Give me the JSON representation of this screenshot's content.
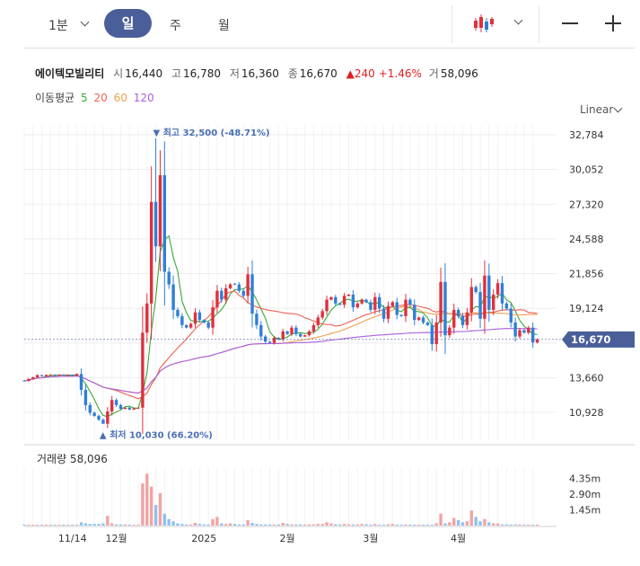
{
  "toolbar": {
    "period_dropdown": "1분",
    "tabs": [
      {
        "label": "일",
        "active": true
      },
      {
        "label": "주",
        "active": false
      },
      {
        "label": "월",
        "active": false
      }
    ],
    "chart_type_icon": "candlestick-icon",
    "zoom_out_icon": "minus-icon",
    "zoom_in_icon": "plus-icon",
    "accent_color": "#4a5e9a"
  },
  "quote": {
    "name": "에이텍모빌리티",
    "open_label": "시",
    "open": "16,440",
    "high_label": "고",
    "high": "16,780",
    "low_label": "저",
    "low": "16,360",
    "close_label": "종",
    "close": "16,670",
    "change": "▲240",
    "change_pct": "+1.46%",
    "volume_label": "거",
    "volume": "58,096"
  },
  "moving_average": {
    "label": "이동평균",
    "periods": [
      {
        "period": "5",
        "color": "#3aaa35"
      },
      {
        "period": "20",
        "color": "#f06050"
      },
      {
        "period": "60",
        "color": "#f0a050"
      },
      {
        "period": "120",
        "color": "#a860e0"
      }
    ]
  },
  "scale_label": "Linear",
  "chart_data": {
    "type": "candlestick",
    "colors": {
      "up": "#e0303c",
      "down": "#2f7fd8"
    },
    "y_ticks": [
      32784,
      30052,
      27320,
      24588,
      21856,
      19124,
      16392,
      13660,
      10928
    ],
    "y_tick_labels": [
      "32,784",
      "30,052",
      "27,320",
      "24,588",
      "21,856",
      "19,124",
      "",
      "13,660",
      "10,928"
    ],
    "ylim": [
      9200,
      34100
    ],
    "x_labels": [
      {
        "label": "11/14",
        "index": 11
      },
      {
        "label": "12월",
        "index": 21
      },
      {
        "label": "2025",
        "index": 41
      },
      {
        "label": "2월",
        "index": 60
      },
      {
        "label": "3월",
        "index": 79
      },
      {
        "label": "4월",
        "index": 99
      }
    ],
    "current_price": {
      "value": 16670,
      "label": "16,670"
    },
    "annotations": {
      "high": {
        "label": "최고 32,500 (-48.71%)",
        "value": 32500,
        "index": 30
      },
      "low": {
        "label": "최저 10,030 (66.20%)",
        "value": 10030,
        "index": 18
      }
    },
    "close": [
      13400,
      13560,
      13690,
      13860,
      13780,
      13880,
      13900,
      13820,
      13900,
      13860,
      13880,
      13820,
      13950,
      12700,
      11500,
      10900,
      10650,
      10350,
      10030,
      11000,
      11900,
      11500,
      11200,
      11300,
      11150,
      11250,
      11300,
      17200,
      19500,
      27500,
      24000,
      29600,
      22000,
      21000,
      19000,
      18500,
      17800,
      17600,
      17900,
      18800,
      18200,
      18000,
      17600,
      19200,
      20500,
      19800,
      20700,
      21000,
      21000,
      20500,
      20100,
      21800,
      18700,
      17800,
      16900,
      16500,
      16400,
      16800,
      16700,
      17300,
      17100,
      17600,
      17100,
      16900,
      17000,
      17300,
      17800,
      18400,
      18900,
      19800,
      20000,
      19500,
      19400,
      20100,
      20200,
      19200,
      19500,
      19800,
      19600,
      19000,
      20000,
      19100,
      18300,
      19300,
      19600,
      18600,
      18500,
      19800,
      19400,
      18200,
      18400,
      18000,
      17800,
      16300,
      18000,
      21200,
      17000,
      17600,
      19000,
      18500,
      17800,
      18800,
      20800,
      20400,
      18300,
      21700,
      19000,
      20200,
      21100,
      19500,
      19100,
      18000,
      16900,
      17400,
      17200,
      17600,
      16430,
      16670
    ],
    "volume_scale": {
      "ticks": [
        "4.35m",
        "2.90m",
        "1.45m"
      ],
      "tick_values": [
        4350000,
        2900000,
        1450000
      ],
      "max": 5400000
    },
    "volume_label": "거래량 58,096",
    "volume": [
      40000,
      30000,
      30000,
      30000,
      30000,
      30000,
      30000,
      30000,
      30000,
      30000,
      30000,
      30000,
      40000,
      300000,
      200000,
      150000,
      150000,
      150000,
      200000,
      900000,
      200000,
      100000,
      100000,
      100000,
      80000,
      80000,
      80000,
      3900000,
      4800000,
      3600000,
      1900000,
      3000000,
      1100000,
      600000,
      400000,
      200000,
      150000,
      100000,
      100000,
      250000,
      150000,
      100000,
      100000,
      600000,
      800000,
      200000,
      150000,
      200000,
      150000,
      100000,
      100000,
      500000,
      250000,
      150000,
      100000,
      100000,
      100000,
      100000,
      100000,
      250000,
      150000,
      100000,
      100000,
      100000,
      100000,
      100000,
      100000,
      150000,
      150000,
      300000,
      200000,
      120000,
      100000,
      150000,
      130000,
      100000,
      100000,
      150000,
      120000,
      80000,
      150000,
      80000,
      60000,
      120000,
      150000,
      80000,
      60000,
      100000,
      80000,
      80000,
      60000,
      60000,
      60000,
      80000,
      200000,
      1100000,
      200000,
      300000,
      700000,
      500000,
      300000,
      400000,
      1400000,
      800000,
      400000,
      600000,
      300000,
      200000,
      200000,
      100000,
      100000,
      80000,
      100000,
      100000,
      80000,
      80000,
      80000,
      60000
    ]
  }
}
